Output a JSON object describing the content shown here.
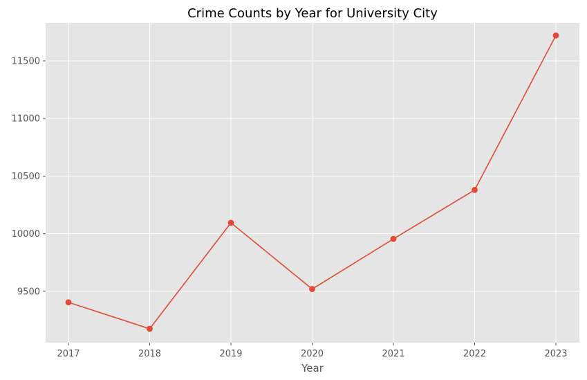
{
  "chart_data": {
    "type": "line",
    "title": "Crime Counts by Year for University City",
    "xlabel": "Year",
    "ylabel": "",
    "x": [
      "2017",
      "2018",
      "2019",
      "2020",
      "2021",
      "2022",
      "2023"
    ],
    "series": [
      {
        "values": [
          9405,
          9175,
          10095,
          9520,
          9955,
          10380,
          11720
        ]
      }
    ],
    "ylim": [
      9055,
      11830
    ],
    "yticks": [
      9500,
      10000,
      10500,
      11000,
      11500
    ],
    "grid": true,
    "marker": "circle",
    "colors": {
      "line": "#E24A33",
      "plot_background": "#E5E5E5",
      "grid": "#FFFFFF",
      "tick_text": "#555555",
      "title_text": "#000000"
    }
  }
}
